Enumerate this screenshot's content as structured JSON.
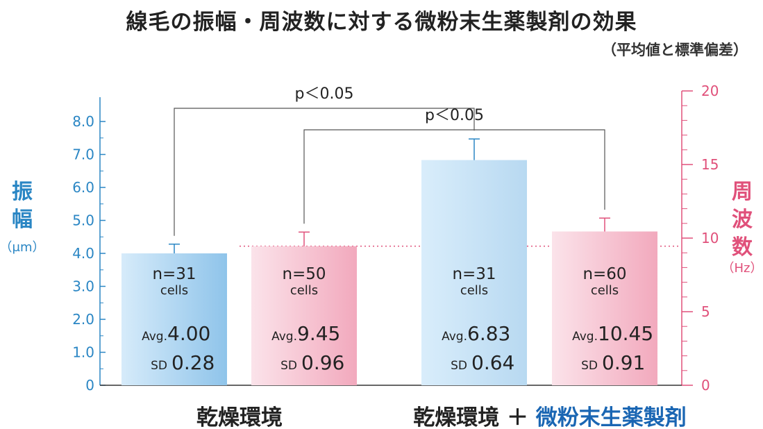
{
  "title": "線毛の振幅・周波数に対する微粉末生薬製剤の効果",
  "subtitle": "（平均値と標準偏差）",
  "colors": {
    "amplitude_axis": "#2a86c4",
    "frequency_axis": "#e0507a",
    "group_highlight": "#1a66b3",
    "text": "#222222"
  },
  "chart_data": {
    "type": "bar",
    "left_axis": {
      "label_lines": [
        "振",
        "幅"
      ],
      "unit": "（μm）",
      "ticks": [
        "0",
        "1.0",
        "2.0",
        "3.0",
        "4.0",
        "5.0",
        "6.0",
        "7.0",
        "8.0"
      ],
      "ylim": [
        0,
        8.9
      ]
    },
    "right_axis": {
      "label_lines": [
        "周",
        "波",
        "数"
      ],
      "unit": "（Hz）",
      "ticks": [
        "0",
        "5",
        "10",
        "15",
        "20"
      ],
      "ylim": [
        0,
        20
      ]
    },
    "groups": [
      {
        "label_main": "乾燥環境",
        "label_highlight": ""
      },
      {
        "label_main": "乾燥環境 ＋",
        "label_highlight": "微粉末生薬製剤"
      }
    ],
    "bars": [
      {
        "metric": "amplitude",
        "axis": "left",
        "group": 0,
        "n_label": "n=31",
        "cells_label": "cells",
        "avg_prefix": "Avg.",
        "avg_label": "4.00",
        "sd_prefix": "SD",
        "sd_label": "0.28",
        "value": 4.0,
        "sd": 0.28,
        "color": "#a9d3f0"
      },
      {
        "metric": "frequency",
        "axis": "right",
        "group": 0,
        "n_label": "n=50",
        "cells_label": "cells",
        "avg_prefix": "Avg.",
        "avg_label": "9.45",
        "sd_prefix": "SD",
        "sd_label": "0.96",
        "value": 9.45,
        "sd": 0.96,
        "color": "#f4b8c8"
      },
      {
        "metric": "amplitude",
        "axis": "left",
        "group": 1,
        "n_label": "n=31",
        "cells_label": "cells",
        "avg_prefix": "Avg.",
        "avg_label": "6.83",
        "sd_prefix": "SD",
        "sd_label": "0.64",
        "value": 6.83,
        "sd": 0.64,
        "color": "#c6e2f5"
      },
      {
        "metric": "frequency",
        "axis": "right",
        "group": 1,
        "n_label": "n=60",
        "cells_label": "cells",
        "avg_prefix": "Avg.",
        "avg_label": "10.45",
        "sd_prefix": "SD",
        "sd_label": "0.91",
        "value": 10.45,
        "sd": 0.91,
        "color": "#f6bfce"
      }
    ],
    "reference_line": {
      "axis": "right",
      "value": 9.45,
      "style": "dotted",
      "color": "#e0507a"
    },
    "significance": [
      {
        "label": "p＜0.05",
        "from_bar": 0,
        "to_bar": 2
      },
      {
        "label": "p＜0.05",
        "from_bar": 1,
        "to_bar": 3
      }
    ]
  }
}
